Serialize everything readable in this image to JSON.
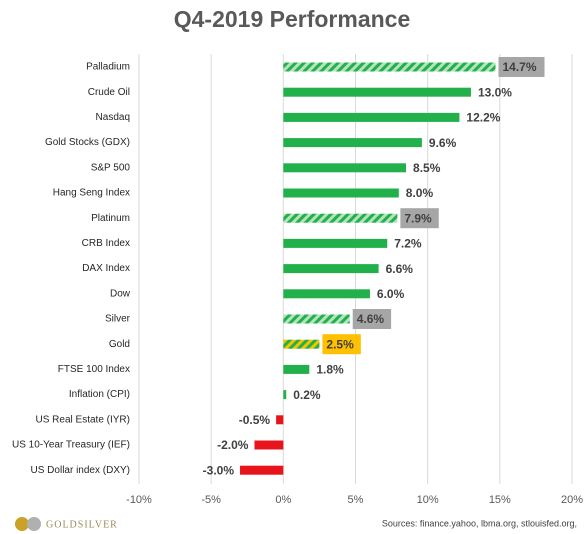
{
  "chart_data": {
    "type": "barh",
    "title": "Q4-2019 Performance",
    "categories": [
      "Palladium",
      "Crude Oil",
      "Nasdaq",
      "Gold Stocks (GDX)",
      "S&P 500",
      "Hang Seng Index",
      "Platinum",
      "CRB Index",
      "DAX Index",
      "Dow",
      "Silver",
      "Gold",
      "FTSE 100 Index",
      "Inflation (CPI)",
      "US Real Estate (IYR)",
      "US 10-Year Treasury (IEF)",
      "US Dollar index (DXY)"
    ],
    "values": [
      14.7,
      13.0,
      12.2,
      9.6,
      8.5,
      8.0,
      7.9,
      7.2,
      6.6,
      6.0,
      4.6,
      2.5,
      1.8,
      0.2,
      -0.5,
      -2.0,
      -3.0
    ],
    "value_labels": [
      "14.7%",
      "13.0%",
      "12.2%",
      "9.6%",
      "8.5%",
      "8.0%",
      "7.9%",
      "7.2%",
      "6.6%",
      "6.0%",
      "4.6%",
      "2.5%",
      "1.8%",
      "0.2%",
      "-0.5%",
      "-2.0%",
      "-3.0%"
    ],
    "colors": [
      "#22b04b",
      "#22b04b",
      "#22b04b",
      "#22b04b",
      "#22b04b",
      "#22b04b",
      "#22b04b",
      "#22b04b",
      "#22b04b",
      "#22b04b",
      "#22b04b",
      "#f5c400",
      "#22b04b",
      "#22b04b",
      "#e8141b",
      "#e8141b",
      "#e8141b"
    ],
    "hatched": [
      true,
      false,
      false,
      false,
      false,
      false,
      true,
      false,
      false,
      false,
      true,
      true,
      false,
      false,
      false,
      false,
      false
    ],
    "label_highlight": [
      "#a6a6a6",
      null,
      null,
      null,
      null,
      null,
      "#a6a6a6",
      null,
      null,
      null,
      "#a6a6a6",
      "#ffc000",
      null,
      null,
      null,
      null,
      null
    ],
    "xlim": [
      -10,
      20
    ],
    "xticks": [
      {
        "value": -10,
        "label": "-10%"
      },
      {
        "value": -5,
        "label": "-5%"
      },
      {
        "value": 0,
        "label": "0%"
      },
      {
        "value": 5,
        "label": "5%"
      },
      {
        "value": 10,
        "label": "10%"
      },
      {
        "value": 15,
        "label": "15%"
      },
      {
        "value": 20,
        "label": "20%"
      }
    ],
    "grid": true,
    "logo": "GoldSilver",
    "source": "Sources: finance.yahoo, lbma.org, stlouisfed.org,"
  }
}
